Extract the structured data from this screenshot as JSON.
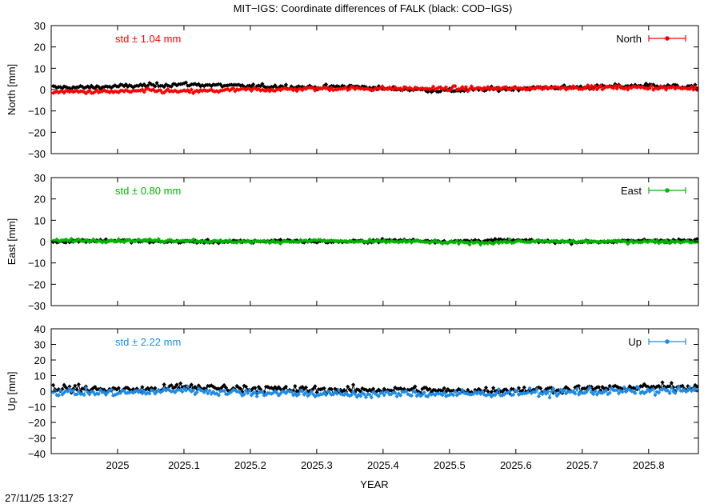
{
  "title": "MIT−IGS: Coordinate differences of FALK (black: COD−IGS)",
  "timestamp": "27/11/25 13:27",
  "xlabel": "YEAR",
  "x_ticks": [
    "2025",
    "2025.1",
    "2025.2",
    "2025.3",
    "2025.4",
    "2025.5",
    "2025.6",
    "2025.7",
    "2025.8"
  ],
  "x_tick_values": [
    2025.0,
    2025.1,
    2025.2,
    2025.3,
    2025.4,
    2025.5,
    2025.6,
    2025.7,
    2025.8
  ],
  "xlim": [
    2024.9,
    2025.875
  ],
  "chart_data": [
    {
      "type": "scatter",
      "name_panel": "north",
      "ylabel": "North [mm]",
      "ylim": [
        -30,
        30
      ],
      "y_ticks": [
        "30",
        "20",
        "10",
        "0",
        "−10",
        "−20",
        "−30"
      ],
      "y_tick_values": [
        30,
        20,
        10,
        0,
        -10,
        -20,
        -30
      ],
      "std_label": "std ± 1.04 mm",
      "legend_label": "North",
      "color": "#ff0000",
      "reference_color": "#000000",
      "grid": false,
      "legend_position": "top-right",
      "series": [
        {
          "role": "reference",
          "x": [
            2024.9,
            2024.95,
            2025.0,
            2025.05,
            2025.1,
            2025.15,
            2025.2,
            2025.25,
            2025.3,
            2025.35,
            2025.4,
            2025.45,
            2025.5,
            2025.55,
            2025.6,
            2025.65,
            2025.7,
            2025.75,
            2025.8,
            2025.875
          ],
          "y": [
            1.0,
            1.0,
            1.5,
            2.0,
            2.5,
            2.0,
            1.5,
            1.5,
            1.0,
            1.5,
            0.5,
            0.0,
            -0.5,
            0.0,
            0.5,
            1.0,
            1.0,
            1.5,
            2.0,
            1.0
          ]
        },
        {
          "role": "main",
          "x": [
            2024.9,
            2024.95,
            2025.0,
            2025.05,
            2025.1,
            2025.15,
            2025.2,
            2025.25,
            2025.3,
            2025.35,
            2025.4,
            2025.45,
            2025.5,
            2025.55,
            2025.6,
            2025.65,
            2025.7,
            2025.75,
            2025.8,
            2025.875
          ],
          "y": [
            -1.0,
            -1.0,
            -1.0,
            -0.5,
            -1.0,
            -0.5,
            0.0,
            0.0,
            0.5,
            0.5,
            0.5,
            0.5,
            0.5,
            0.5,
            0.5,
            1.0,
            1.0,
            1.0,
            1.0,
            0.5
          ]
        }
      ]
    },
    {
      "type": "scatter",
      "name_panel": "east",
      "ylabel": "East [mm]",
      "ylim": [
        -30,
        30
      ],
      "y_ticks": [
        "30",
        "20",
        "10",
        "0",
        "−10",
        "−20",
        "−30"
      ],
      "y_tick_values": [
        30,
        20,
        10,
        0,
        -10,
        -20,
        -30
      ],
      "std_label": "std ± 0.80 mm",
      "legend_label": "East",
      "color": "#00b400",
      "reference_color": "#000000",
      "grid": false,
      "legend_position": "top-right",
      "series": [
        {
          "role": "reference",
          "x": [
            2024.9,
            2024.95,
            2025.0,
            2025.05,
            2025.1,
            2025.15,
            2025.2,
            2025.25,
            2025.3,
            2025.35,
            2025.4,
            2025.45,
            2025.5,
            2025.55,
            2025.6,
            2025.65,
            2025.7,
            2025.75,
            2025.8,
            2025.875
          ],
          "y": [
            0.0,
            0.5,
            0.5,
            0.0,
            0.0,
            0.0,
            0.0,
            0.5,
            0.0,
            0.0,
            0.5,
            0.5,
            0.0,
            0.5,
            0.5,
            0.0,
            0.0,
            0.0,
            0.5,
            0.5
          ]
        },
        {
          "role": "main",
          "x": [
            2024.9,
            2024.95,
            2025.0,
            2025.05,
            2025.1,
            2025.15,
            2025.2,
            2025.25,
            2025.3,
            2025.35,
            2025.4,
            2025.45,
            2025.5,
            2025.55,
            2025.6,
            2025.65,
            2025.7,
            2025.75,
            2025.8,
            2025.875
          ],
          "y": [
            0.5,
            0.5,
            0.5,
            0.5,
            0.5,
            0.0,
            0.0,
            0.0,
            0.5,
            0.0,
            0.0,
            0.0,
            -0.5,
            -0.5,
            0.0,
            0.0,
            0.0,
            0.0,
            0.0,
            0.0
          ]
        }
      ]
    },
    {
      "type": "scatter",
      "name_panel": "up",
      "ylabel": "Up [mm]",
      "ylim": [
        -40,
        40
      ],
      "y_ticks": [
        "40",
        "30",
        "20",
        "10",
        "0",
        "−10",
        "−20",
        "−30",
        "−40"
      ],
      "y_tick_values": [
        40,
        30,
        20,
        10,
        0,
        -10,
        -20,
        -30,
        -40
      ],
      "std_label": "std ± 2.22 mm",
      "legend_label": "Up",
      "color": "#1e8ce6",
      "reference_color": "#000000",
      "grid": false,
      "legend_position": "top-right",
      "series": [
        {
          "role": "reference",
          "x": [
            2024.9,
            2024.95,
            2025.0,
            2025.05,
            2025.1,
            2025.15,
            2025.2,
            2025.25,
            2025.3,
            2025.35,
            2025.4,
            2025.45,
            2025.5,
            2025.55,
            2025.6,
            2025.65,
            2025.7,
            2025.75,
            2025.8,
            2025.875
          ],
          "y": [
            2.0,
            1.5,
            1.0,
            1.0,
            3.0,
            2.0,
            2.0,
            1.0,
            1.0,
            0.5,
            1.0,
            1.0,
            0.0,
            0.5,
            1.0,
            1.0,
            1.5,
            2.0,
            2.5,
            3.0
          ]
        },
        {
          "role": "main",
          "x": [
            2024.9,
            2024.95,
            2025.0,
            2025.05,
            2025.1,
            2025.15,
            2025.2,
            2025.25,
            2025.3,
            2025.35,
            2025.4,
            2025.45,
            2025.5,
            2025.55,
            2025.6,
            2025.65,
            2025.7,
            2025.75,
            2025.8,
            2025.875
          ],
          "y": [
            0.0,
            -1.0,
            -1.0,
            -0.5,
            1.0,
            -0.5,
            -1.0,
            -1.0,
            -1.5,
            -2.0,
            -2.0,
            -1.5,
            -2.0,
            -1.5,
            -1.0,
            -1.0,
            -0.5,
            0.0,
            0.0,
            0.5
          ]
        }
      ]
    }
  ]
}
